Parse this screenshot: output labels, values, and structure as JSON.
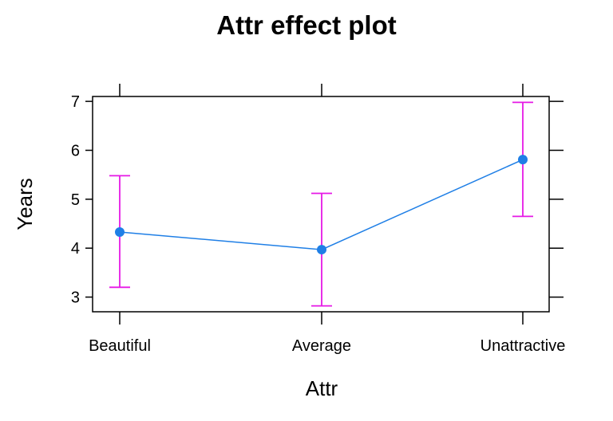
{
  "chart_data": {
    "type": "line",
    "title": "Attr effect plot",
    "xlabel": "Attr",
    "ylabel": "Years",
    "categories": [
      "Beautiful",
      "Average",
      "Unattractive"
    ],
    "series": [
      {
        "values": [
          4.33,
          3.97,
          5.81
        ],
        "lower": [
          3.2,
          2.82,
          4.65
        ],
        "upper": [
          5.48,
          5.12,
          6.98
        ]
      }
    ],
    "yticks": [
      3,
      4,
      5,
      6,
      7
    ],
    "ylim": [
      2.7,
      7.1
    ],
    "grid": false,
    "colors": {
      "line": "#1f7fe6",
      "point": "#1f7fe6",
      "errorbar": "#e619e6",
      "frame": "#000000"
    }
  }
}
